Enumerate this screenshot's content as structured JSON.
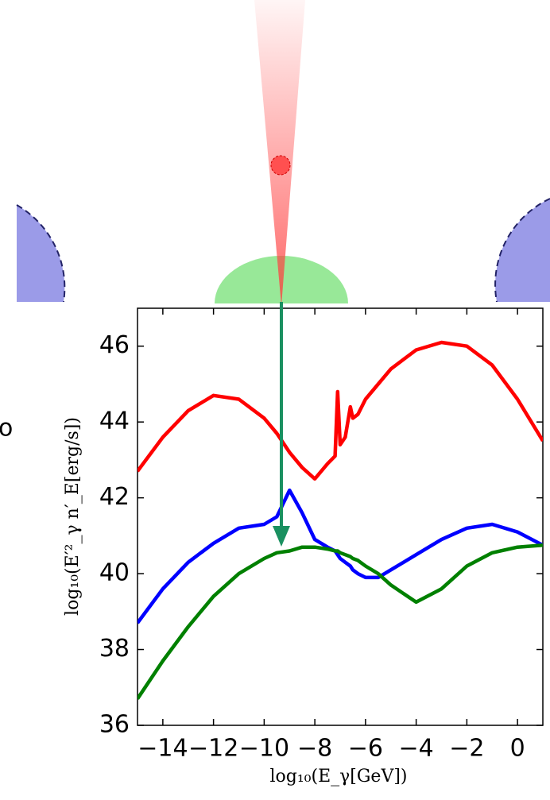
{
  "chart_data": {
    "type": "line",
    "xlabel": "log₁₀(E_γ[GeV])",
    "ylabel": "log₁₀(E′²_γ n′_E[erg/s])",
    "annotations": [
      "o"
    ],
    "x": [
      -15,
      -14,
      -13,
      -12,
      -11,
      -10,
      -9.5,
      -9,
      -8.5,
      -8,
      -7.5,
      -7.2,
      -7.1,
      -7.0,
      -6.8,
      -6.6,
      -6.5,
      -6.3,
      -6,
      -5.5,
      -5,
      -4,
      -3,
      -2,
      -1,
      0,
      1
    ],
    "series": [
      {
        "color": "#ff0000",
        "values": [
          42.7,
          43.6,
          44.3,
          44.7,
          44.6,
          44.1,
          43.7,
          43.2,
          42.8,
          42.5,
          42.9,
          43.1,
          44.8,
          43.4,
          43.6,
          44.4,
          44.1,
          44.2,
          44.6,
          45.0,
          45.4,
          45.9,
          46.1,
          46.0,
          45.5,
          44.6,
          43.5
        ]
      },
      {
        "color": "#0000ff",
        "values": [
          38.7,
          39.6,
          40.3,
          40.8,
          41.2,
          41.3,
          41.5,
          42.2,
          41.6,
          40.9,
          40.7,
          40.6,
          40.5,
          40.4,
          40.3,
          40.2,
          40.1,
          40.0,
          39.9,
          39.9,
          40.1,
          40.5,
          40.9,
          41.2,
          41.3,
          41.1,
          40.75
        ]
      },
      {
        "color": "#008000",
        "values": [
          36.7,
          37.7,
          38.6,
          39.4,
          40.0,
          40.4,
          40.55,
          40.6,
          40.7,
          40.7,
          40.65,
          40.6,
          40.6,
          40.55,
          40.5,
          40.45,
          40.4,
          40.35,
          40.2,
          40.0,
          39.7,
          39.25,
          39.6,
          40.2,
          40.55,
          40.7,
          40.75
        ]
      }
    ],
    "xlim": [
      -15,
      1
    ],
    "xticks": [
      {
        "value": -14,
        "label": "−14"
      },
      {
        "value": -12,
        "label": "−12"
      },
      {
        "value": -10,
        "label": "−10"
      },
      {
        "value": -8,
        "label": "−8"
      },
      {
        "value": -6,
        "label": "−6"
      },
      {
        "value": -4,
        "label": "−4"
      },
      {
        "value": -2,
        "label": "−2"
      },
      0
    ],
    "ylim": [
      36,
      47
    ],
    "yticks": [
      36,
      38,
      40,
      42,
      44,
      46
    ]
  }
}
